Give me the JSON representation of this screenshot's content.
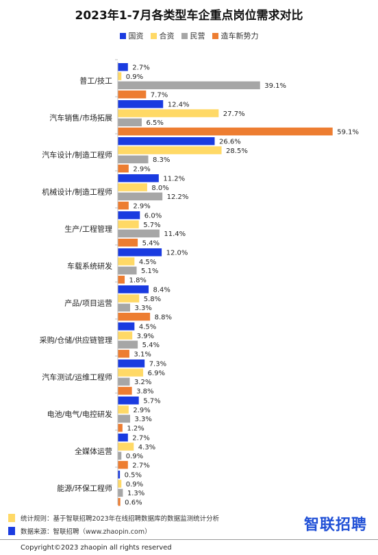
{
  "title": "2023年1-7月各类型车企重点岗位需求对比",
  "legend": [
    {
      "label": "国资",
      "color": "#1a3be0"
    },
    {
      "label": "合资",
      "color": "#ffd966"
    },
    {
      "label": "民营",
      "color": "#a6a6a6"
    },
    {
      "label": "造车新势力",
      "color": "#ed7d31"
    }
  ],
  "chart_data": {
    "type": "bar",
    "orientation": "horizontal",
    "unit": "%",
    "categories": [
      "普工/技工",
      "汽车销售/市场拓展",
      "汽车设计/制造工程师",
      "机械设计/制造工程师",
      "生产/工程管理",
      "车载系统研发",
      "产品/项目运营",
      "采购/仓储/供应链管理",
      "汽车测试/运维工程师",
      "电池/电气/电控研发",
      "全媒体运营",
      "能源/环保工程师"
    ],
    "series": [
      {
        "name": "国资",
        "color": "#1a3be0",
        "values": [
          2.7,
          12.4,
          26.6,
          11.2,
          6.0,
          12.0,
          8.4,
          4.5,
          7.3,
          5.7,
          2.7,
          0.5
        ],
        "labels": [
          "2.7%",
          "12.4%",
          "26.6%",
          "11.2%",
          "6.0%",
          "12.0%",
          "8.4%",
          "4.5%",
          "7.3%",
          "5.7%",
          "2.7%",
          "0.5%"
        ]
      },
      {
        "name": "合资",
        "color": "#ffd966",
        "values": [
          0.9,
          27.7,
          28.5,
          8.0,
          5.7,
          4.5,
          5.8,
          3.9,
          6.9,
          2.9,
          4.3,
          0.9
        ],
        "labels": [
          "0.9%",
          "27.7%",
          "28.5%",
          "8.0%",
          "5.7%",
          "4.5%",
          "5.8%",
          "3.9%",
          "6.9%",
          "2.9%",
          "4.3%",
          "0.9%"
        ]
      },
      {
        "name": "民营",
        "color": "#a6a6a6",
        "values": [
          39.1,
          6.5,
          8.3,
          12.2,
          11.4,
          5.1,
          3.3,
          5.4,
          3.2,
          3.3,
          0.9,
          1.3
        ],
        "labels": [
          "39.1%",
          "6.5%",
          "8.3%",
          "12.2%",
          "11.4%",
          "5.1%",
          "3.3%",
          "5.4%",
          "3.2%",
          "3.3%",
          "0.9%",
          "1.3%"
        ]
      },
      {
        "name": "造车新势力",
        "color": "#ed7d31",
        "values": [
          7.7,
          59.1,
          2.9,
          2.9,
          5.4,
          1.8,
          8.8,
          3.1,
          3.8,
          1.2,
          2.7,
          0.6
        ],
        "labels": [
          "7.7%",
          "59.1%",
          "2.9%",
          "2.9%",
          "5.4%",
          "1.8%",
          "8.8%",
          "3.1%",
          "3.8%",
          "1.2%",
          "2.7%",
          "0.6%"
        ]
      }
    ],
    "xlim": [
      0,
      60
    ],
    "grid": false,
    "legend_position": "top"
  },
  "footer": {
    "stat_rule": "统计规则：基于智联招聘2023年在线招聘数据库的数据监测统计分析",
    "stat_rule_color": "#ffd966",
    "data_source": "数据来源：智联招聘（www.zhaopin.com）",
    "data_source_color": "#1a3be0",
    "logo": "智联招聘",
    "copyright": "Copyright©2023 zhaopin all rights reserved"
  }
}
